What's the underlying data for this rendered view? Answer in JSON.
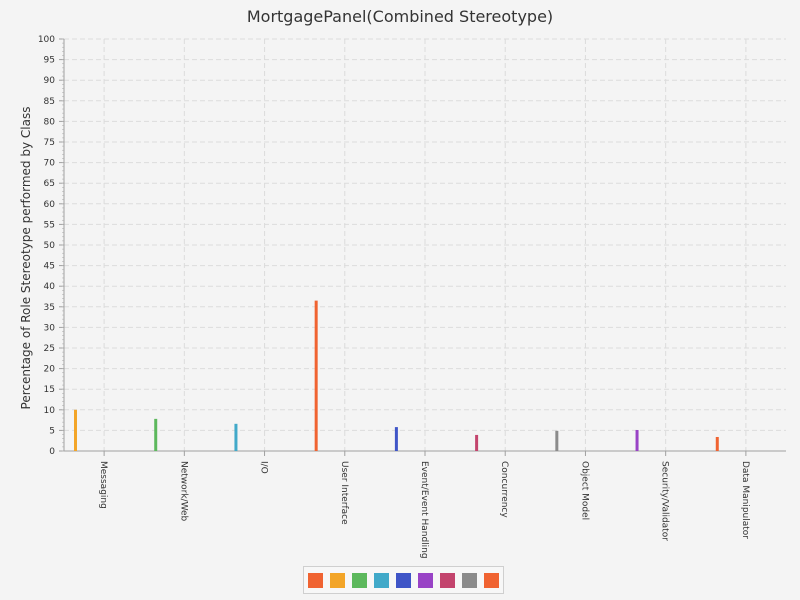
{
  "chart_data": {
    "type": "bar",
    "title": "MortgagePanel(Combined Stereotype)",
    "ylabel": "Percentage of Role Stereotype performed by Class",
    "xlabel": "",
    "ylim": [
      0,
      100
    ],
    "ytick_step": 5,
    "grid": true,
    "legend_position": "bottom",
    "categories": [
      "Messaging",
      "Network/Web",
      "I/O",
      "User Interface",
      "Event/Event Handling",
      "Concurrency",
      "Object Model",
      "Security/Validator",
      "Data Manipulator"
    ],
    "values": [
      10,
      7.8,
      6.6,
      36.5,
      5.8,
      3.9,
      4.9,
      5.1,
      3.4
    ],
    "colors": [
      "#f3a528",
      "#5cb85c",
      "#41a9c9",
      "#f06331",
      "#3f55c7",
      "#c3446d",
      "#8b8b8b",
      "#9943c6",
      "#f06331"
    ]
  },
  "legend": {
    "colors": [
      "#f06331",
      "#f3a528",
      "#5cb85c",
      "#41a9c9",
      "#3f55c7",
      "#9943c6",
      "#c3446d",
      "#8b8b8b",
      "#f06331"
    ]
  }
}
